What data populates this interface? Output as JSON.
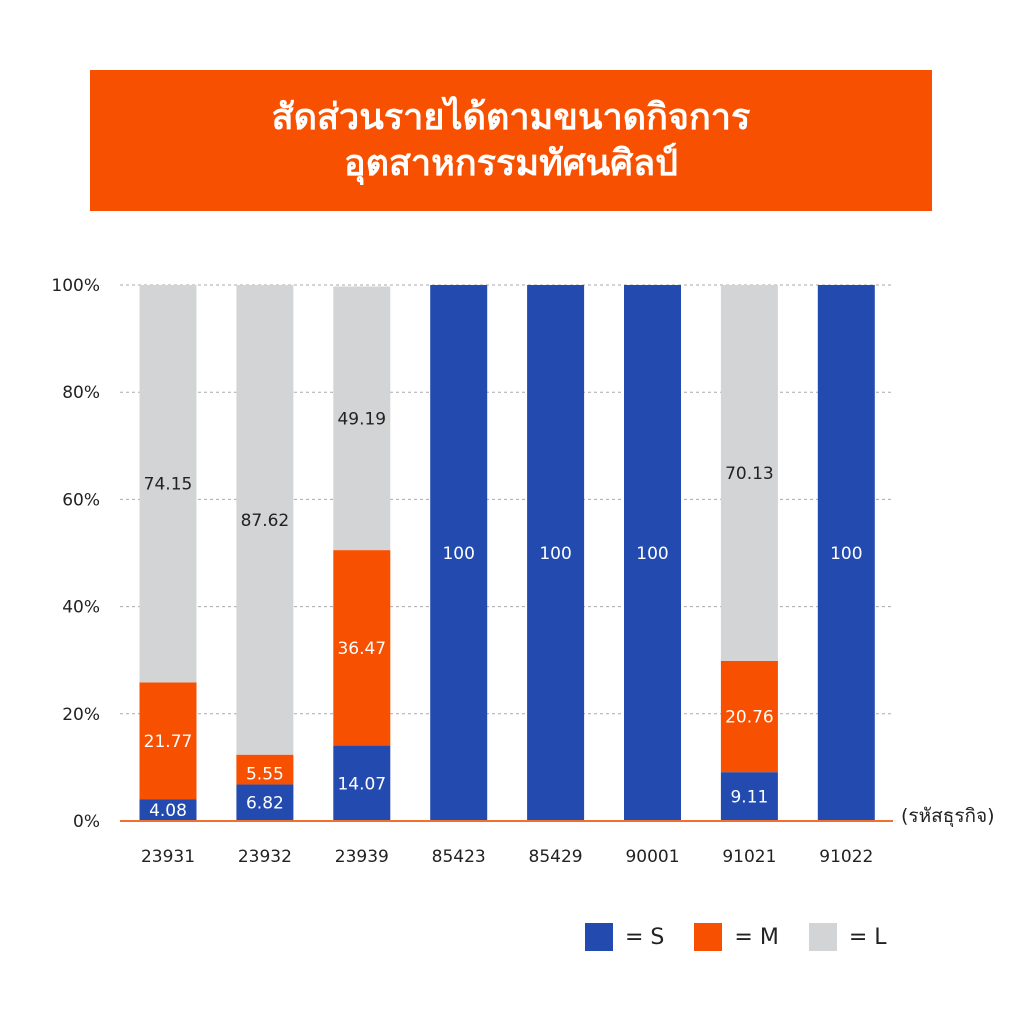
{
  "title": {
    "line1": "สัดส่วนรายได้ตามขนาดกิจการ",
    "line2": "อุตสาหกรรมทัศนศิลป์"
  },
  "colors": {
    "S": "#234aae",
    "M": "#f75000",
    "L": "#d3d4d5",
    "banner": "#f75000",
    "axis": "#f07030",
    "grid": "#aaaaaa"
  },
  "chart_data": {
    "type": "bar",
    "stacked": true,
    "categories": [
      "23931",
      "23932",
      "23939",
      "85423",
      "85429",
      "90001",
      "91021",
      "91022"
    ],
    "series": [
      {
        "name": "S",
        "values": [
          4.08,
          6.82,
          14.07,
          100,
          100,
          100,
          9.11,
          100
        ]
      },
      {
        "name": "M",
        "values": [
          21.77,
          5.55,
          36.47,
          0,
          0,
          0,
          20.76,
          0
        ]
      },
      {
        "name": "L",
        "values": [
          74.15,
          87.62,
          49.19,
          0,
          0,
          0,
          70.13,
          0
        ]
      }
    ],
    "data_labels": [
      [
        "4.08",
        "6.82",
        "14.07",
        "100",
        "100",
        "100",
        "9.11",
        "100"
      ],
      [
        "21.77",
        "5.55",
        "36.47",
        "",
        "",
        "",
        "20.76",
        ""
      ],
      [
        "74.15",
        "87.62",
        "49.19",
        "",
        "",
        "",
        "70.13",
        ""
      ]
    ],
    "yticks": [
      "0%",
      "20%",
      "40%",
      "60%",
      "80%",
      "100%"
    ],
    "ylim": [
      0,
      100
    ],
    "xlabel": "(รหัสธุรกิจ)",
    "ylabel": "",
    "grid": true,
    "legend": {
      "position": "bottom-right",
      "entries": [
        "= S",
        "= M",
        "= L"
      ]
    }
  }
}
